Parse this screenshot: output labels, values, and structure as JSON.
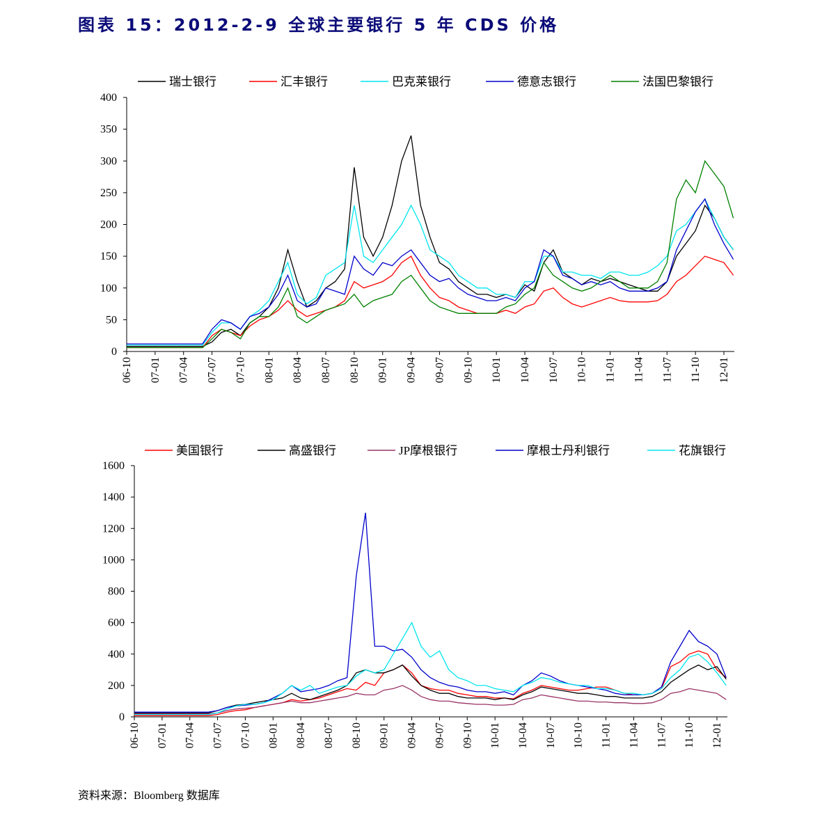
{
  "title": "图表 15：2012-2-9 全球主要银行 5 年 CDS 价格",
  "source": "资料来源：Bloomberg 数据库",
  "chart_data": [
    {
      "type": "line",
      "categories": [
        "06-10",
        null,
        null,
        "07-01",
        null,
        null,
        "07-04",
        null,
        null,
        "07-07",
        null,
        null,
        "07-10",
        null,
        null,
        "08-01",
        null,
        null,
        "08-04",
        null,
        null,
        "08-07",
        null,
        null,
        "08-10",
        null,
        null,
        "09-01",
        null,
        null,
        "09-04",
        null,
        null,
        "09-07",
        null,
        null,
        "09-10",
        null,
        null,
        "10-01",
        null,
        null,
        "10-04",
        null,
        null,
        "10-07",
        null,
        null,
        "10-10",
        null,
        null,
        "11-01",
        null,
        null,
        "11-04",
        null,
        null,
        "11-07",
        null,
        null,
        "11-10",
        null,
        null,
        "12-01",
        null
      ],
      "ylim": [
        0,
        400
      ],
      "yticks": [
        0,
        50,
        100,
        150,
        200,
        250,
        300,
        350,
        400
      ],
      "series": [
        {
          "name": "瑞士银行",
          "color": "#000000",
          "values": [
            8,
            8,
            8,
            8,
            8,
            8,
            8,
            8,
            8,
            15,
            30,
            35,
            25,
            45,
            55,
            70,
            100,
            160,
            110,
            70,
            80,
            100,
            110,
            130,
            290,
            180,
            150,
            180,
            230,
            300,
            340,
            230,
            180,
            140,
            130,
            110,
            100,
            90,
            90,
            85,
            90,
            85,
            105,
            95,
            140,
            160,
            125,
            115,
            105,
            115,
            110,
            115,
            110,
            105,
            100,
            95,
            95,
            110,
            150,
            170,
            190,
            230,
            210,
            180,
            160
          ]
        },
        {
          "name": "汇丰银行",
          "color": "#ff0000",
          "values": [
            6,
            6,
            6,
            6,
            6,
            6,
            6,
            6,
            6,
            25,
            35,
            30,
            25,
            40,
            50,
            55,
            65,
            80,
            65,
            55,
            60,
            65,
            70,
            80,
            110,
            100,
            105,
            110,
            120,
            140,
            150,
            120,
            100,
            85,
            80,
            70,
            65,
            60,
            60,
            60,
            65,
            60,
            70,
            75,
            95,
            100,
            85,
            75,
            70,
            75,
            80,
            85,
            80,
            78,
            78,
            78,
            80,
            90,
            110,
            120,
            135,
            150,
            145,
            140,
            120
          ]
        },
        {
          "name": "巴克莱银行",
          "color": "#00e5ee",
          "values": [
            10,
            10,
            10,
            10,
            10,
            10,
            10,
            10,
            10,
            30,
            45,
            45,
            35,
            55,
            65,
            80,
            110,
            140,
            90,
            75,
            85,
            120,
            130,
            140,
            230,
            150,
            140,
            160,
            180,
            200,
            230,
            200,
            160,
            150,
            140,
            120,
            110,
            100,
            100,
            90,
            90,
            85,
            110,
            110,
            150,
            150,
            125,
            125,
            120,
            120,
            115,
            125,
            125,
            120,
            120,
            125,
            135,
            150,
            190,
            200,
            220,
            240,
            210,
            180,
            160
          ]
        },
        {
          "name": "德意志银行",
          "color": "#0000cc",
          "values": [
            12,
            12,
            12,
            12,
            12,
            12,
            12,
            12,
            12,
            35,
            50,
            45,
            35,
            55,
            60,
            70,
            90,
            120,
            80,
            70,
            75,
            100,
            95,
            90,
            150,
            130,
            120,
            140,
            135,
            150,
            160,
            140,
            120,
            110,
            115,
            100,
            90,
            85,
            80,
            80,
            85,
            80,
            100,
            110,
            160,
            150,
            120,
            115,
            105,
            110,
            105,
            110,
            100,
            95,
            95,
            95,
            100,
            110,
            160,
            190,
            220,
            240,
            200,
            170,
            145
          ]
        },
        {
          "name": "法国巴黎银行",
          "color": "#008000",
          "values": [
            6,
            6,
            6,
            6,
            6,
            6,
            6,
            6,
            6,
            20,
            35,
            30,
            20,
            45,
            55,
            55,
            70,
            100,
            55,
            45,
            55,
            65,
            70,
            75,
            90,
            70,
            80,
            85,
            90,
            110,
            120,
            100,
            80,
            70,
            65,
            60,
            60,
            60,
            60,
            60,
            70,
            75,
            90,
            100,
            140,
            120,
            110,
            100,
            95,
            100,
            110,
            120,
            110,
            100,
            100,
            100,
            110,
            140,
            240,
            270,
            250,
            300,
            280,
            260,
            210
          ]
        }
      ]
    },
    {
      "type": "line",
      "categories": [
        "06-10",
        null,
        null,
        "07-01",
        null,
        null,
        "07-04",
        null,
        null,
        "07-07",
        null,
        null,
        "07-10",
        null,
        null,
        "08-01",
        null,
        null,
        "08-04",
        null,
        null,
        "08-07",
        null,
        null,
        "08-10",
        null,
        null,
        "09-01",
        null,
        null,
        "09-04",
        null,
        null,
        "09-07",
        null,
        null,
        "09-10",
        null,
        null,
        "10-01",
        null,
        null,
        "10-04",
        null,
        null,
        "10-07",
        null,
        null,
        "10-10",
        null,
        null,
        "11-01",
        null,
        null,
        "11-04",
        null,
        null,
        "11-07",
        null,
        null,
        "11-10",
        null,
        null,
        "12-01",
        null
      ],
      "ylim": [
        0,
        1600
      ],
      "yticks": [
        0,
        200,
        400,
        600,
        800,
        1000,
        1200,
        1400,
        1600
      ],
      "series": [
        {
          "name": "美国银行",
          "color": "#ff0000",
          "values": [
            8,
            8,
            8,
            8,
            8,
            8,
            8,
            8,
            8,
            15,
            30,
            40,
            45,
            60,
            70,
            80,
            90,
            110,
            100,
            110,
            120,
            140,
            160,
            180,
            170,
            220,
            200,
            280,
            300,
            330,
            280,
            200,
            180,
            170,
            170,
            150,
            140,
            130,
            130,
            120,
            120,
            115,
            150,
            170,
            200,
            190,
            180,
            170,
            170,
            180,
            190,
            190,
            170,
            150,
            140,
            140,
            150,
            180,
            320,
            350,
            400,
            420,
            400,
            300,
            250
          ]
        },
        {
          "name": "高盛银行",
          "color": "#000000",
          "values": [
            25,
            25,
            25,
            25,
            25,
            25,
            25,
            25,
            25,
            40,
            60,
            75,
            80,
            90,
            100,
            110,
            120,
            150,
            120,
            110,
            130,
            150,
            170,
            200,
            280,
            300,
            280,
            280,
            300,
            330,
            260,
            200,
            170,
            150,
            150,
            130,
            120,
            120,
            120,
            110,
            120,
            110,
            140,
            160,
            190,
            180,
            170,
            160,
            150,
            150,
            140,
            130,
            130,
            120,
            120,
            120,
            130,
            160,
            220,
            260,
            300,
            330,
            300,
            320,
            240
          ]
        },
        {
          "name": "JP摩根银行",
          "color": "#993366",
          "values": [
            20,
            20,
            20,
            20,
            20,
            20,
            20,
            20,
            20,
            25,
            40,
            50,
            55,
            60,
            70,
            80,
            90,
            100,
            90,
            90,
            100,
            110,
            120,
            130,
            150,
            140,
            140,
            170,
            180,
            200,
            170,
            130,
            110,
            100,
            100,
            90,
            85,
            80,
            80,
            75,
            75,
            80,
            110,
            120,
            140,
            130,
            120,
            110,
            100,
            100,
            95,
            95,
            90,
            90,
            85,
            85,
            90,
            110,
            150,
            160,
            180,
            170,
            160,
            150,
            110
          ]
        },
        {
          "name": "摩根士丹利银行",
          "color": "#0000cc",
          "values": [
            30,
            30,
            30,
            30,
            30,
            30,
            30,
            30,
            30,
            40,
            60,
            70,
            75,
            80,
            90,
            120,
            150,
            200,
            160,
            170,
            180,
            200,
            230,
            250,
            900,
            1300,
            450,
            450,
            420,
            430,
            380,
            300,
            250,
            220,
            200,
            190,
            170,
            160,
            160,
            150,
            160,
            140,
            200,
            230,
            280,
            260,
            230,
            210,
            200,
            190,
            180,
            170,
            150,
            140,
            140,
            140,
            150,
            190,
            350,
            450,
            550,
            480,
            450,
            400,
            250
          ]
        },
        {
          "name": "花旗银行",
          "color": "#00e5ee",
          "values": [
            15,
            15,
            15,
            15,
            15,
            15,
            15,
            15,
            15,
            25,
            50,
            70,
            80,
            80,
            90,
            110,
            150,
            200,
            170,
            200,
            150,
            170,
            190,
            200,
            260,
            300,
            280,
            300,
            400,
            500,
            600,
            450,
            380,
            420,
            300,
            250,
            230,
            200,
            200,
            180,
            170,
            160,
            200,
            220,
            250,
            240,
            220,
            210,
            200,
            200,
            180,
            180,
            170,
            150,
            150,
            140,
            150,
            180,
            250,
            300,
            380,
            400,
            350,
            280,
            200
          ]
        }
      ]
    }
  ]
}
